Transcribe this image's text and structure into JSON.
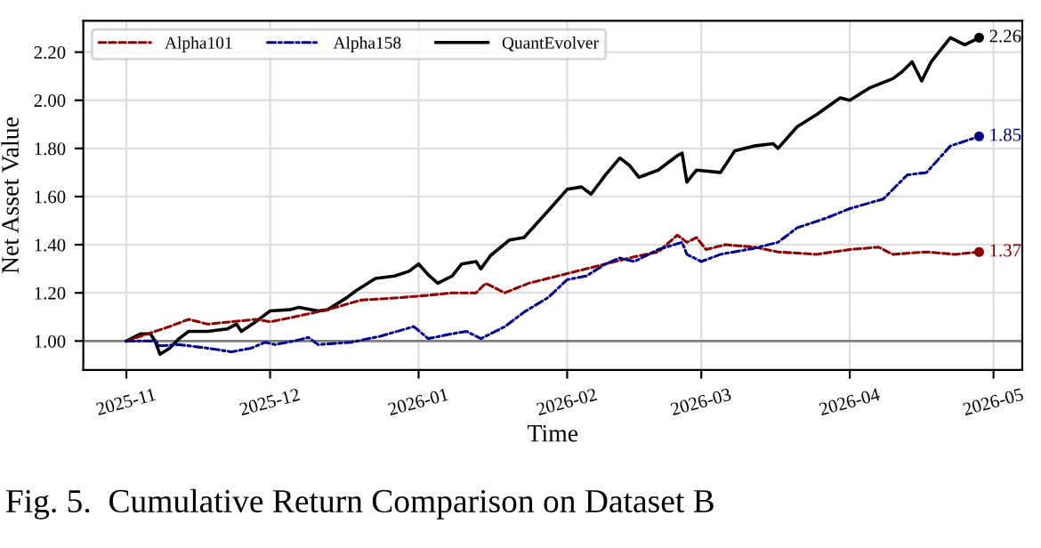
{
  "chart_data": {
    "type": "line",
    "title": "Fig. 5.  Cumulative Return Comparison on Dataset B",
    "xlabel": "Time",
    "ylabel": "Net Asset Value",
    "xlim": [
      "2025-10-23",
      "2026-05-07"
    ],
    "ylim": [
      0.88,
      2.33
    ],
    "xticks": [
      {
        "value": "2025-11-01",
        "label": "2025-11"
      },
      {
        "value": "2025-12-01",
        "label": "2025-12"
      },
      {
        "value": "2026-01-01",
        "label": "2026-01"
      },
      {
        "value": "2026-02-01",
        "label": "2026-02"
      },
      {
        "value": "2026-03-01",
        "label": "2026-03"
      },
      {
        "value": "2026-04-01",
        "label": "2026-04"
      },
      {
        "value": "2026-05-01",
        "label": "2026-05"
      }
    ],
    "yticks": [
      {
        "value": 1.0,
        "label": "1.00"
      },
      {
        "value": 1.2,
        "label": "1.20"
      },
      {
        "value": 1.4,
        "label": "1.40"
      },
      {
        "value": 1.6,
        "label": "1.60"
      },
      {
        "value": 1.8,
        "label": "1.80"
      },
      {
        "value": 2.0,
        "label": "2.00"
      },
      {
        "value": 2.2,
        "label": "2.20"
      }
    ],
    "grid": true,
    "legend": "top left",
    "marker": "none",
    "ref_lines": [
      {
        "axis": "y",
        "value": 1.0,
        "color": "#808080"
      }
    ],
    "annotations": [
      {
        "text": "1.37",
        "x": "2026-04-28",
        "y": 1.37
      },
      {
        "text": "1.85",
        "x": "2026-04-28",
        "y": 1.85
      },
      {
        "text": "2.26",
        "x": "2026-04-28",
        "y": 2.26
      }
    ],
    "series": [
      {
        "name": "Alpha101",
        "color": "#8b0000",
        "line_style": "dashed",
        "x": [
          "2025-11-01",
          "2025-11-07",
          "2025-11-10",
          "2025-11-14",
          "2025-11-18",
          "2025-11-23",
          "2025-11-28",
          "2025-12-01",
          "2025-12-06",
          "2025-12-13",
          "2025-12-20",
          "2025-12-28",
          "2026-01-03",
          "2026-01-08",
          "2026-01-13",
          "2026-01-15",
          "2026-01-19",
          "2026-01-24",
          "2026-02-01",
          "2026-02-09",
          "2026-02-15",
          "2026-02-20",
          "2026-02-24",
          "2026-02-26",
          "2026-02-28",
          "2026-03-02",
          "2026-03-06",
          "2026-03-12",
          "2026-03-17",
          "2026-03-25",
          "2026-04-01",
          "2026-04-07",
          "2026-04-10",
          "2026-04-17",
          "2026-04-23",
          "2026-04-28"
        ],
        "values": [
          1.0,
          1.04,
          1.06,
          1.09,
          1.07,
          1.08,
          1.09,
          1.08,
          1.1,
          1.13,
          1.17,
          1.18,
          1.19,
          1.2,
          1.2,
          1.24,
          1.2,
          1.24,
          1.28,
          1.32,
          1.35,
          1.37,
          1.44,
          1.41,
          1.43,
          1.38,
          1.4,
          1.39,
          1.37,
          1.36,
          1.38,
          1.39,
          1.36,
          1.37,
          1.36,
          1.37
        ]
      },
      {
        "name": "Alpha158",
        "color": "#00008b",
        "line_style": "dashdot",
        "x": [
          "2025-11-01",
          "2025-11-07",
          "2025-11-08",
          "2025-11-12",
          "2025-11-18",
          "2025-11-23",
          "2025-11-27",
          "2025-11-30",
          "2025-12-02",
          "2025-12-06",
          "2025-12-09",
          "2025-12-11",
          "2025-12-18",
          "2025-12-24",
          "2025-12-31",
          "2026-01-03",
          "2026-01-08",
          "2026-01-11",
          "2026-01-14",
          "2026-01-19",
          "2026-01-23",
          "2026-01-28",
          "2026-02-01",
          "2026-02-05",
          "2026-02-09",
          "2026-02-12",
          "2026-02-15",
          "2026-02-20",
          "2026-02-25",
          "2026-02-26",
          "2026-03-01",
          "2026-03-05",
          "2026-03-12",
          "2026-03-17",
          "2026-03-21",
          "2026-03-27",
          "2026-04-01",
          "2026-04-08",
          "2026-04-13",
          "2026-04-17",
          "2026-04-22",
          "2026-04-28"
        ],
        "values": [
          1.0,
          1.0,
          0.98,
          0.985,
          0.97,
          0.955,
          0.97,
          0.995,
          0.985,
          1.0,
          1.015,
          0.985,
          0.995,
          1.02,
          1.06,
          1.01,
          1.03,
          1.04,
          1.01,
          1.06,
          1.12,
          1.18,
          1.255,
          1.27,
          1.32,
          1.345,
          1.33,
          1.38,
          1.41,
          1.36,
          1.33,
          1.36,
          1.385,
          1.41,
          1.47,
          1.51,
          1.55,
          1.59,
          1.69,
          1.7,
          1.81,
          1.85
        ]
      },
      {
        "name": "QuantEvolver",
        "color": "#000000",
        "line_style": "solid",
        "x": [
          "2025-11-01",
          "2025-11-03",
          "2025-11-04",
          "2025-11-06",
          "2025-11-07",
          "2025-11-08",
          "2025-11-10",
          "2025-11-12",
          "2025-11-14",
          "2025-11-18",
          "2025-11-22",
          "2025-11-24",
          "2025-11-25",
          "2025-11-28",
          "2025-12-01",
          "2025-12-05",
          "2025-12-07",
          "2025-12-11",
          "2025-12-13",
          "2025-12-17",
          "2025-12-19",
          "2025-12-23",
          "2025-12-27",
          "2025-12-30",
          "2026-01-01",
          "2026-01-03",
          "2026-01-05",
          "2026-01-08",
          "2026-01-10",
          "2026-01-13",
          "2026-01-14",
          "2026-01-16",
          "2026-01-20",
          "2026-01-23",
          "2026-01-28",
          "2026-02-01",
          "2026-02-04",
          "2026-02-06",
          "2026-02-09",
          "2026-02-12",
          "2026-02-14",
          "2026-02-16",
          "2026-02-20",
          "2026-02-24",
          "2026-02-25",
          "2026-02-26",
          "2026-02-28",
          "2026-03-05",
          "2026-03-08",
          "2026-03-12",
          "2026-03-16",
          "2026-03-17",
          "2026-03-21",
          "2026-03-25",
          "2026-03-30",
          "2026-04-01",
          "2026-04-05",
          "2026-04-10",
          "2026-04-12",
          "2026-04-14",
          "2026-04-16",
          "2026-04-18",
          "2026-04-22",
          "2026-04-25",
          "2026-04-28"
        ],
        "values": [
          1.0,
          1.02,
          1.03,
          1.03,
          1.0,
          0.945,
          0.97,
          1.01,
          1.04,
          1.04,
          1.05,
          1.07,
          1.04,
          1.08,
          1.125,
          1.13,
          1.14,
          1.125,
          1.13,
          1.18,
          1.21,
          1.26,
          1.27,
          1.29,
          1.32,
          1.275,
          1.24,
          1.27,
          1.32,
          1.33,
          1.3,
          1.355,
          1.42,
          1.43,
          1.54,
          1.63,
          1.64,
          1.61,
          1.69,
          1.76,
          1.73,
          1.68,
          1.71,
          1.77,
          1.78,
          1.66,
          1.71,
          1.7,
          1.79,
          1.81,
          1.82,
          1.8,
          1.89,
          1.94,
          2.01,
          2.0,
          2.05,
          2.09,
          2.12,
          2.16,
          2.08,
          2.16,
          2.26,
          2.23,
          2.26
        ]
      }
    ]
  }
}
